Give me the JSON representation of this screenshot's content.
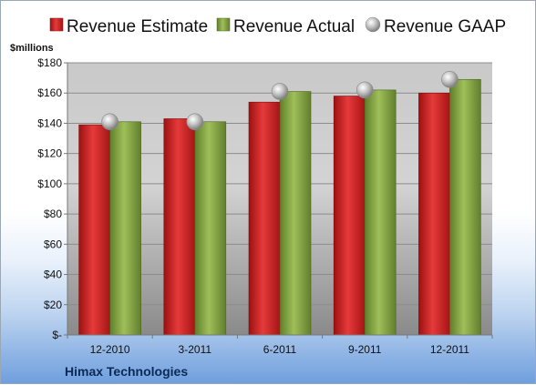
{
  "chart_data": {
    "type": "bar",
    "title": "",
    "xlabel": "",
    "ylabel": "$millions",
    "ylim": [
      0,
      180
    ],
    "ytick_values": [
      0,
      20,
      40,
      60,
      80,
      100,
      120,
      140,
      160,
      180
    ],
    "ytick_labels": [
      "$-",
      "$20",
      "$40",
      "$60",
      "$80",
      "$100",
      "$120",
      "$140",
      "$160",
      "$180"
    ],
    "categories": [
      "12-2010",
      "3-2011",
      "6-2011",
      "9-2011",
      "12-2011"
    ],
    "series": [
      {
        "name": "Revenue Estimate",
        "kind": "bar",
        "color": "#d42a2a",
        "values": [
          139,
          143,
          154,
          158,
          160
        ]
      },
      {
        "name": "Revenue Actual",
        "kind": "bar",
        "color": "#8fb04a",
        "values": [
          141,
          141,
          161,
          162,
          169
        ]
      },
      {
        "name": "Revenue GAAP",
        "kind": "marker",
        "color": "#b9b9b9",
        "values": [
          141,
          141,
          161,
          162,
          169
        ]
      }
    ],
    "legend": "top",
    "grid": true
  },
  "footer": {
    "company": "Himax Technologies"
  }
}
